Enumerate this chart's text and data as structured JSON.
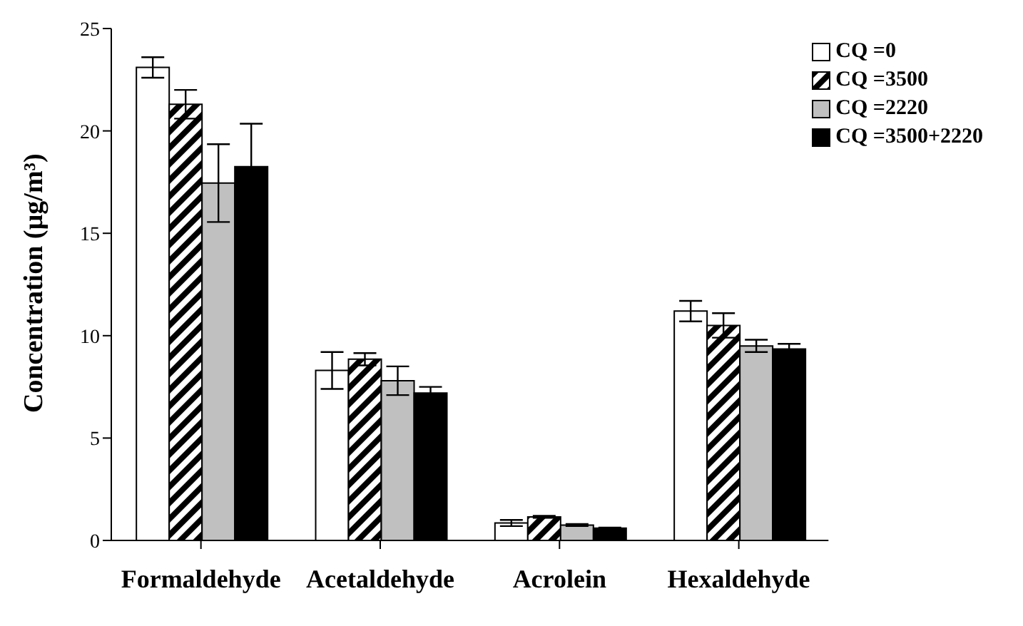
{
  "chart_data": {
    "type": "bar",
    "ylabel": "Concentration (µg/m³)",
    "categories": [
      "Formaldehyde",
      "Acetaldehyde",
      "Acrolein",
      "Hexaldehyde"
    ],
    "series": [
      {
        "name": "CQ =0",
        "color": "#ffffff",
        "values": [
          23.1,
          8.3,
          0.85,
          11.2
        ],
        "errors": [
          0.5,
          0.9,
          0.15,
          0.5
        ]
      },
      {
        "name": "CQ =3500",
        "color": "#000000",
        "values": [
          21.3,
          8.85,
          1.15,
          10.5
        ],
        "errors": [
          0.7,
          0.3,
          0.05,
          0.6
        ]
      },
      {
        "name": "CQ =2220",
        "color": "#c0c0c0",
        "values": [
          17.45,
          7.8,
          0.75,
          9.5
        ],
        "errors": [
          1.9,
          0.7,
          0.05,
          0.3
        ]
      },
      {
        "name": "CQ =3500+2220",
        "color": "#000000",
        "values": [
          18.25,
          7.2,
          0.6,
          9.35
        ],
        "errors": [
          2.1,
          0.3,
          0.03,
          0.25
        ]
      }
    ],
    "ylim": [
      0,
      25
    ],
    "yticks": [
      0,
      5,
      10,
      15,
      20,
      25
    ],
    "grid": false,
    "legend": "top right"
  }
}
